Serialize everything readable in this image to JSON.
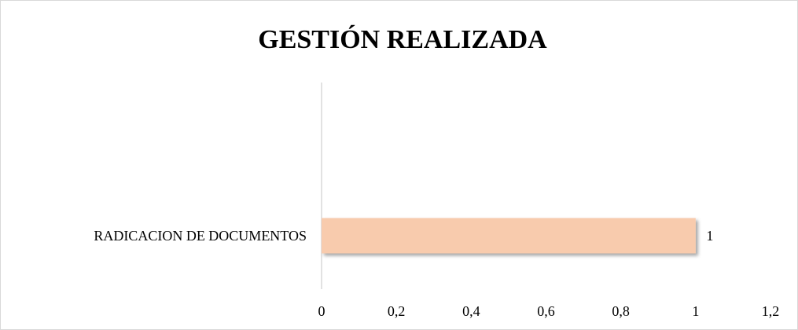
{
  "chart_data": {
    "type": "bar",
    "orientation": "horizontal",
    "title": "GESTIÓN REALIZADA",
    "categories": [
      "RADICACION DE DOCUMENTOS"
    ],
    "values": [
      1
    ],
    "color": "#f8cbad",
    "xlim": [
      0,
      1.2
    ],
    "xticks": [
      0,
      {
        "value": 0.2,
        "label": "0,2"
      },
      {
        "value": 0.4,
        "label": "0,4"
      },
      {
        "value": 0.6,
        "label": "0,6"
      },
      {
        "value": 0.8,
        "label": "0,8"
      },
      1,
      {
        "value": 1.2,
        "label": "1,2"
      }
    ],
    "grid": false
  }
}
